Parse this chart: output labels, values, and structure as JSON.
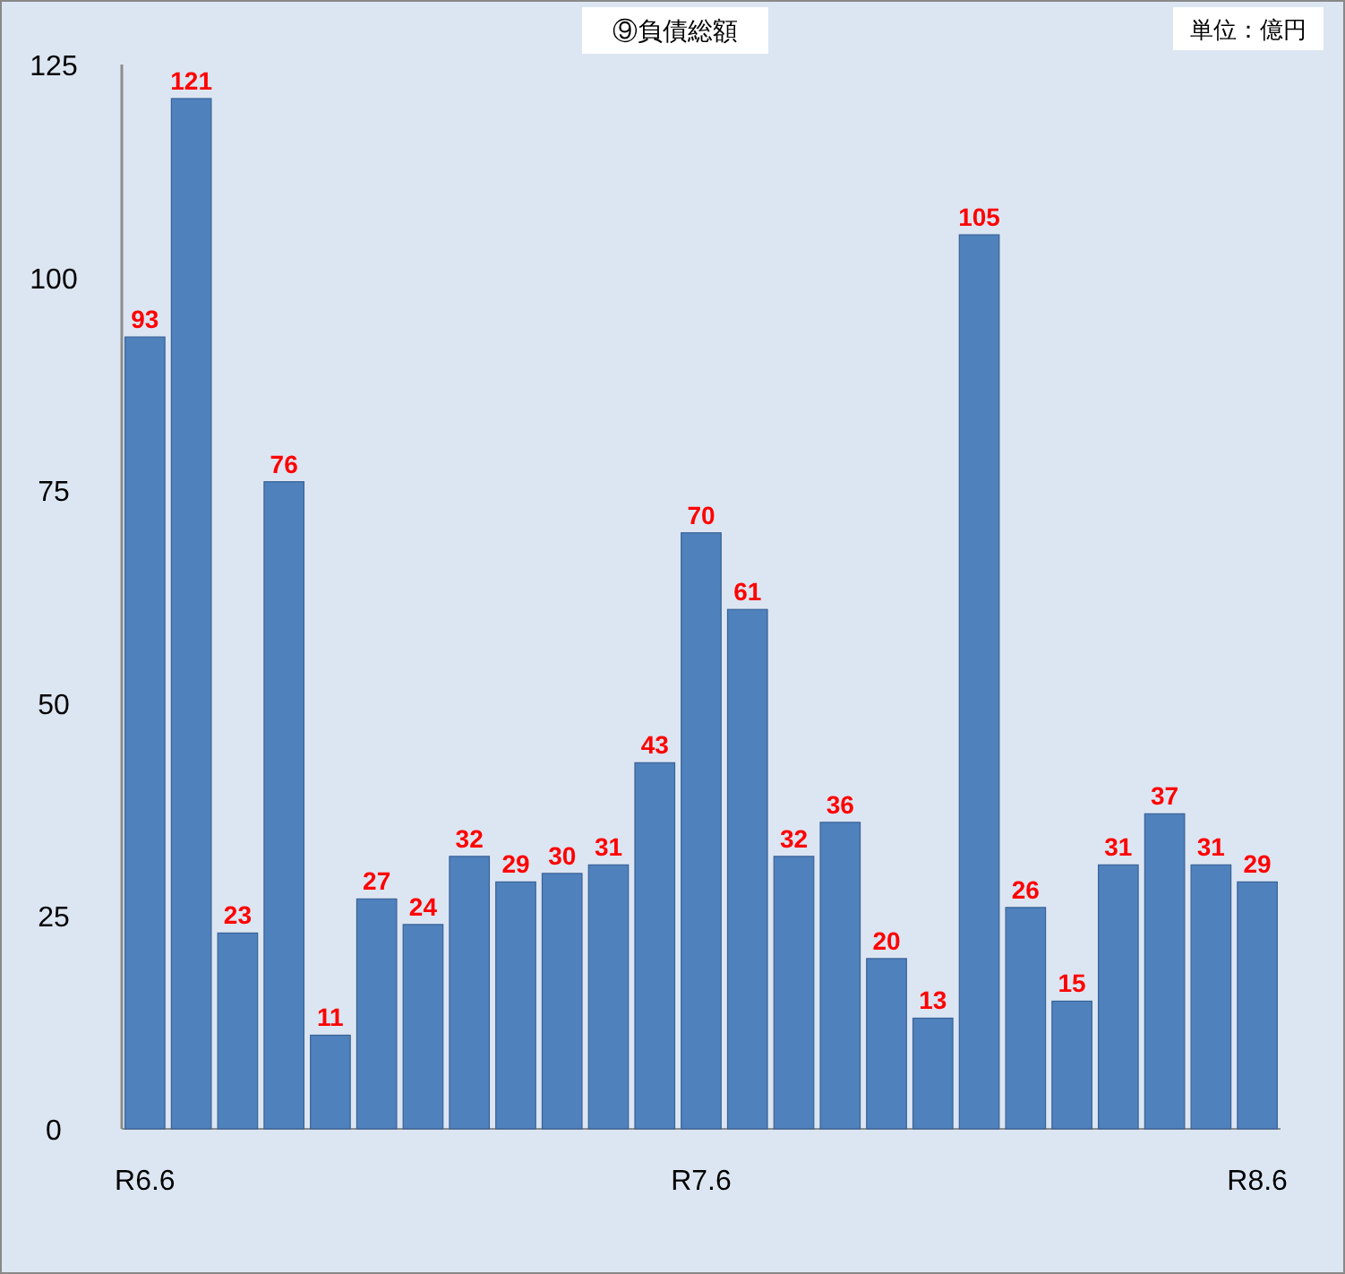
{
  "chart_data": {
    "type": "bar",
    "title": "⑨負債総額",
    "annotations": [
      "単位：億円"
    ],
    "categories": [
      "R6.6",
      null,
      null,
      null,
      null,
      null,
      null,
      null,
      null,
      null,
      null,
      null,
      "R7.6",
      null,
      null,
      null,
      null,
      null,
      null,
      null,
      null,
      null,
      null,
      null,
      "R8.6"
    ],
    "values": [
      93,
      121,
      23,
      76,
      11,
      27,
      24,
      32,
      29,
      30,
      31,
      43,
      70,
      61,
      32,
      36,
      20,
      13,
      105,
      26,
      15,
      31,
      37,
      31,
      29
    ],
    "color": "#4f81bd",
    "ylim": [
      0,
      125
    ],
    "yticks": [
      0,
      25,
      50,
      75,
      100,
      125
    ],
    "grid": false,
    "data_labels": true
  }
}
